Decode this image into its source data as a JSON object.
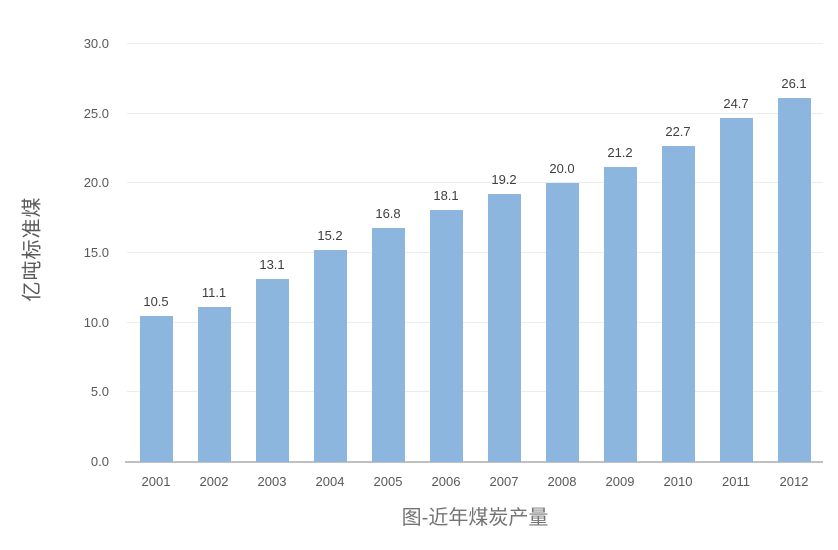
{
  "chart": {
    "title": "图-近年煤炭产量",
    "y_axis_title": "亿吨标准煤",
    "colors": {
      "bar": "#8db6de",
      "gridline": "#ededed",
      "axis_line": "#c0c0c0",
      "tick_text": "#595959",
      "data_label_text": "#404040",
      "title_text": "#747474"
    }
  },
  "chart_data": {
    "type": "bar",
    "title": "图-近年煤炭产量",
    "xlabel": "",
    "ylabel": "亿吨标准煤",
    "categories": [
      "2001",
      "2002",
      "2003",
      "2004",
      "2005",
      "2006",
      "2007",
      "2008",
      "2009",
      "2010",
      "2011",
      "2012"
    ],
    "values": [
      10.5,
      11.1,
      13.1,
      15.2,
      16.8,
      18.1,
      19.2,
      20.0,
      21.2,
      22.7,
      24.7,
      26.1
    ],
    "data_labels": [
      "10.5",
      "11.1",
      "13.1",
      "15.2",
      "16.8",
      "18.1",
      "19.2",
      "20.0",
      "21.2",
      "22.7",
      "24.7",
      "26.1"
    ],
    "ylim": [
      0,
      30
    ],
    "yticks": [
      0,
      5,
      10,
      15,
      20,
      25,
      30
    ],
    "ytick_labels": [
      "0.0",
      "5.0",
      "10.0",
      "15.0",
      "20.0",
      "25.0",
      "30.0"
    ],
    "grid": true,
    "legend": false
  }
}
